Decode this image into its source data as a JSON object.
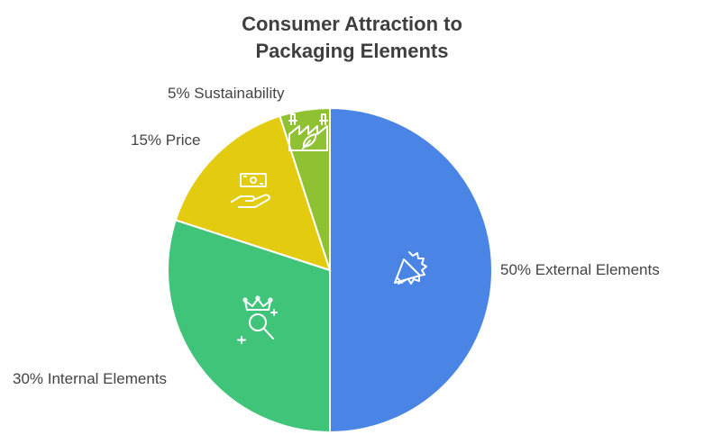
{
  "chart_data": {
    "type": "pie",
    "title_lines": [
      "Consumer Attraction to",
      "Packaging Elements"
    ],
    "slices": [
      {
        "label": "External Elements",
        "value": 50,
        "display": "50% External Elements",
        "color": "#4a84e4",
        "icon": "megaphone-icon"
      },
      {
        "label": "Internal Elements",
        "value": 30,
        "display": "30% Internal Elements",
        "color": "#3fc47a",
        "icon": "crown-magnifier-icon"
      },
      {
        "label": "Price",
        "value": 15,
        "display": "15% Price",
        "color": "#e3cb10",
        "icon": "money-hand-icon"
      },
      {
        "label": "Sustainability",
        "value": 5,
        "display": "5% Sustainability",
        "color": "#8fc232",
        "icon": "eco-factory-icon"
      }
    ],
    "legend": "none"
  }
}
